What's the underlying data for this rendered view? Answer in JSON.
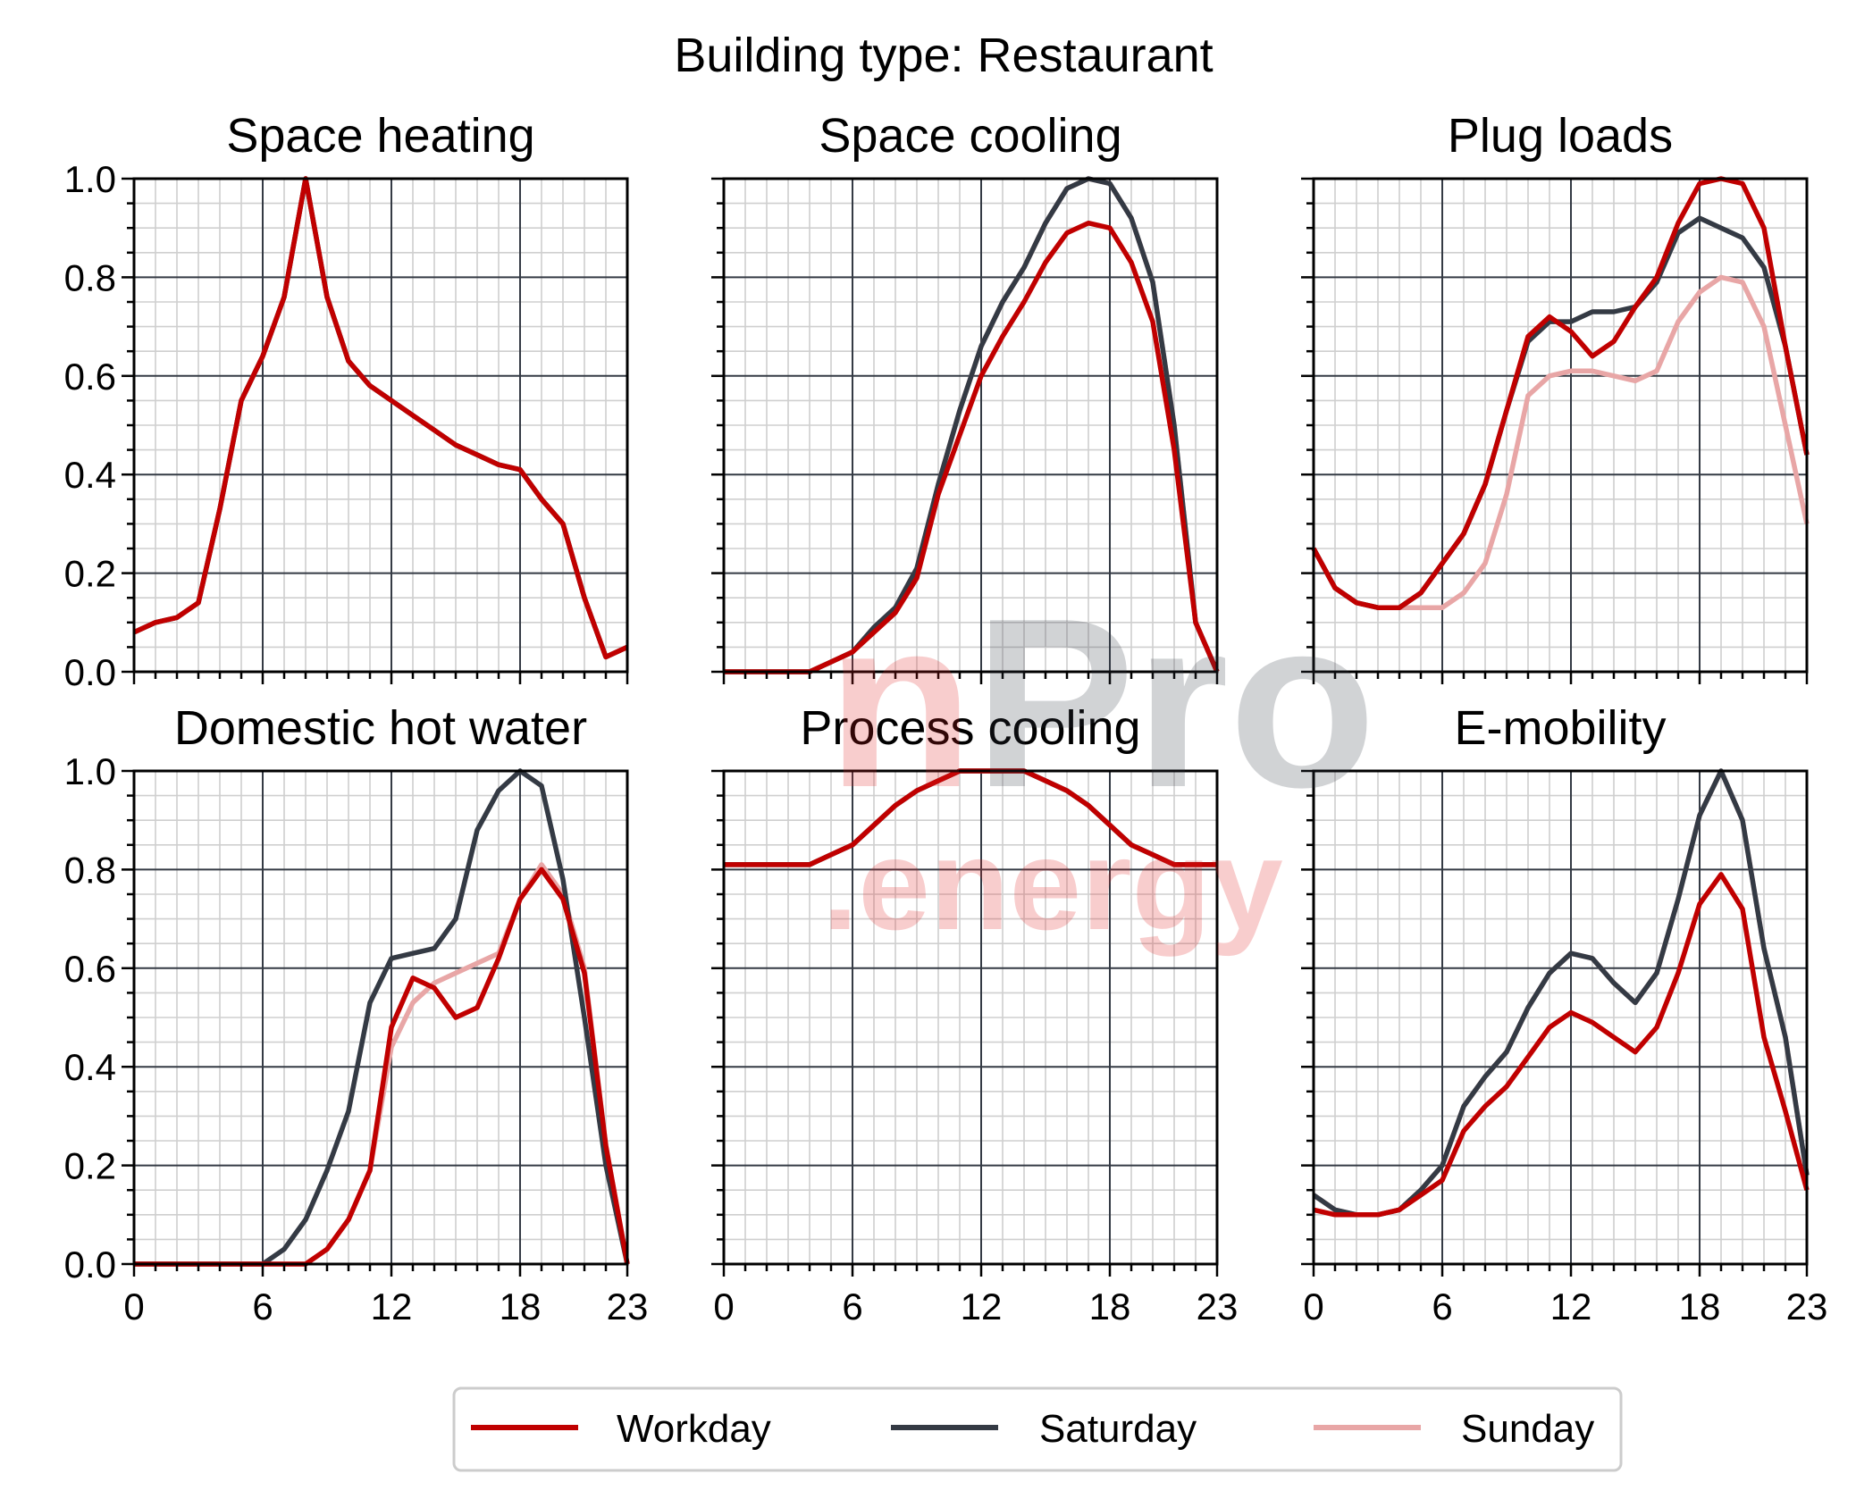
{
  "figure_title": "Building type: Restaurant",
  "watermark": {
    "line1_a": "n",
    "line1_b": "Pro",
    "line2": ".energy"
  },
  "colors": {
    "workday": "#c00000",
    "saturday": "#343a44",
    "sunday": "#e8a6a6",
    "grid_major": "#343a44",
    "grid_minor": "#cfcfcf"
  },
  "legend": [
    {
      "key": "workday",
      "label": "Workday"
    },
    {
      "key": "saturday",
      "label": "Saturday"
    },
    {
      "key": "sunday",
      "label": "Sunday"
    }
  ],
  "chart_data": [
    {
      "type": "line",
      "title": "Space heating",
      "x": [
        0,
        1,
        2,
        3,
        4,
        5,
        6,
        7,
        8,
        9,
        10,
        11,
        12,
        13,
        14,
        15,
        16,
        17,
        18,
        19,
        20,
        21,
        22,
        23
      ],
      "xticks": [
        0,
        6,
        12,
        18,
        23
      ],
      "xlim": [
        0,
        23
      ],
      "yticks": [
        "0.0",
        "0.2",
        "0.4",
        "0.6",
        "0.8",
        "1.0"
      ],
      "ylim": [
        0,
        1
      ],
      "show_yticklabels": true,
      "show_xticklabels": false,
      "grid": true,
      "series": [
        {
          "key": "sunday",
          "values": [
            0.08,
            0.1,
            0.11,
            0.14,
            0.33,
            0.55,
            0.64,
            0.76,
            1.0,
            0.76,
            0.63,
            0.58,
            0.55,
            0.52,
            0.49,
            0.46,
            0.44,
            0.42,
            0.41,
            0.35,
            0.3,
            0.15,
            0.03,
            0.05
          ]
        },
        {
          "key": "saturday",
          "values": [
            0.08,
            0.1,
            0.11,
            0.14,
            0.33,
            0.55,
            0.64,
            0.76,
            1.0,
            0.76,
            0.63,
            0.58,
            0.55,
            0.52,
            0.49,
            0.46,
            0.44,
            0.42,
            0.41,
            0.35,
            0.3,
            0.15,
            0.03,
            0.05
          ]
        },
        {
          "key": "workday",
          "values": [
            0.08,
            0.1,
            0.11,
            0.14,
            0.33,
            0.55,
            0.64,
            0.76,
            1.0,
            0.76,
            0.63,
            0.58,
            0.55,
            0.52,
            0.49,
            0.46,
            0.44,
            0.42,
            0.41,
            0.35,
            0.3,
            0.15,
            0.03,
            0.05
          ]
        }
      ]
    },
    {
      "type": "line",
      "title": "Space cooling",
      "x": [
        0,
        1,
        2,
        3,
        4,
        5,
        6,
        7,
        8,
        9,
        10,
        11,
        12,
        13,
        14,
        15,
        16,
        17,
        18,
        19,
        20,
        21,
        22,
        23
      ],
      "xticks": [
        0,
        6,
        12,
        18,
        23
      ],
      "xlim": [
        0,
        23
      ],
      "yticks": [
        "0.0",
        "0.2",
        "0.4",
        "0.6",
        "0.8",
        "1.0"
      ],
      "ylim": [
        0,
        1
      ],
      "show_yticklabels": false,
      "show_xticklabels": false,
      "grid": true,
      "series": [
        {
          "key": "sunday",
          "values": [
            0,
            0,
            0,
            0,
            0,
            0.02,
            0.04,
            0.09,
            0.13,
            0.21,
            0.38,
            0.53,
            0.66,
            0.75,
            0.82,
            0.91,
            0.98,
            1.0,
            0.99,
            0.92,
            0.79,
            0.5,
            0.1,
            0
          ]
        },
        {
          "key": "saturday",
          "values": [
            0,
            0,
            0,
            0,
            0,
            0.02,
            0.04,
            0.09,
            0.13,
            0.21,
            0.38,
            0.53,
            0.66,
            0.75,
            0.82,
            0.91,
            0.98,
            1.0,
            0.99,
            0.92,
            0.79,
            0.5,
            0.1,
            0
          ]
        },
        {
          "key": "workday",
          "values": [
            0,
            0,
            0,
            0,
            0,
            0.02,
            0.04,
            0.08,
            0.12,
            0.19,
            0.36,
            0.48,
            0.6,
            0.68,
            0.75,
            0.83,
            0.89,
            0.91,
            0.9,
            0.83,
            0.71,
            0.45,
            0.1,
            0
          ]
        }
      ]
    },
    {
      "type": "line",
      "title": "Plug loads",
      "x": [
        0,
        1,
        2,
        3,
        4,
        5,
        6,
        7,
        8,
        9,
        10,
        11,
        12,
        13,
        14,
        15,
        16,
        17,
        18,
        19,
        20,
        21,
        22,
        23
      ],
      "xticks": [
        0,
        6,
        12,
        18,
        23
      ],
      "xlim": [
        0,
        23
      ],
      "yticks": [
        "0.0",
        "0.2",
        "0.4",
        "0.6",
        "0.8",
        "1.0"
      ],
      "ylim": [
        0,
        1
      ],
      "show_yticklabels": false,
      "show_xticklabels": false,
      "grid": true,
      "series": [
        {
          "key": "sunday",
          "values": [
            0.25,
            0.17,
            0.14,
            0.13,
            0.13,
            0.13,
            0.13,
            0.16,
            0.22,
            0.36,
            0.56,
            0.6,
            0.61,
            0.61,
            0.6,
            0.59,
            0.61,
            0.71,
            0.77,
            0.8,
            0.79,
            0.7,
            0.5,
            0.3
          ]
        },
        {
          "key": "saturday",
          "values": [
            0.25,
            0.17,
            0.14,
            0.13,
            0.13,
            0.16,
            0.22,
            0.28,
            0.38,
            0.53,
            0.67,
            0.71,
            0.71,
            0.73,
            0.73,
            0.74,
            0.79,
            0.89,
            0.92,
            0.9,
            0.88,
            0.82,
            0.66,
            0.44
          ]
        },
        {
          "key": "workday",
          "values": [
            0.25,
            0.17,
            0.14,
            0.13,
            0.13,
            0.16,
            0.22,
            0.28,
            0.38,
            0.53,
            0.68,
            0.72,
            0.69,
            0.64,
            0.67,
            0.74,
            0.8,
            0.91,
            0.99,
            1.0,
            0.99,
            0.9,
            0.66,
            0.44
          ]
        }
      ]
    },
    {
      "type": "line",
      "title": "Domestic hot water",
      "x": [
        0,
        1,
        2,
        3,
        4,
        5,
        6,
        7,
        8,
        9,
        10,
        11,
        12,
        13,
        14,
        15,
        16,
        17,
        18,
        19,
        20,
        21,
        22,
        23
      ],
      "xticks": [
        0,
        6,
        12,
        18,
        23
      ],
      "xlim": [
        0,
        23
      ],
      "yticks": [
        "0.0",
        "0.2",
        "0.4",
        "0.6",
        "0.8",
        "1.0"
      ],
      "ylim": [
        0,
        1
      ],
      "show_yticklabels": true,
      "show_xticklabels": true,
      "grid": true,
      "series": [
        {
          "key": "sunday",
          "values": [
            0,
            0,
            0,
            0,
            0,
            0,
            0,
            0,
            0,
            0.03,
            0.09,
            0.19,
            0.44,
            0.53,
            0.57,
            0.59,
            0.61,
            0.63,
            0.74,
            0.81,
            0.75,
            0.6,
            0.24,
            0
          ]
        },
        {
          "key": "saturday",
          "values": [
            0,
            0,
            0,
            0,
            0,
            0,
            0,
            0.03,
            0.09,
            0.19,
            0.31,
            0.53,
            0.62,
            0.63,
            0.64,
            0.7,
            0.88,
            0.96,
            1.0,
            0.97,
            0.78,
            0.5,
            0.2,
            0
          ]
        },
        {
          "key": "workday",
          "values": [
            0,
            0,
            0,
            0,
            0,
            0,
            0,
            0,
            0,
            0.03,
            0.09,
            0.19,
            0.48,
            0.58,
            0.56,
            0.5,
            0.52,
            0.62,
            0.74,
            0.8,
            0.74,
            0.59,
            0.24,
            0
          ]
        }
      ]
    },
    {
      "type": "line",
      "title": "Process cooling",
      "x": [
        0,
        1,
        2,
        3,
        4,
        5,
        6,
        7,
        8,
        9,
        10,
        11,
        12,
        13,
        14,
        15,
        16,
        17,
        18,
        19,
        20,
        21,
        22,
        23
      ],
      "xticks": [
        0,
        6,
        12,
        18,
        23
      ],
      "xlim": [
        0,
        23
      ],
      "yticks": [
        "0.0",
        "0.2",
        "0.4",
        "0.6",
        "0.8",
        "1.0"
      ],
      "ylim": [
        0,
        1
      ],
      "show_yticklabels": false,
      "show_xticklabels": true,
      "grid": true,
      "series": [
        {
          "key": "sunday",
          "values": [
            0.81,
            0.81,
            0.81,
            0.81,
            0.81,
            0.83,
            0.85,
            0.89,
            0.93,
            0.96,
            0.98,
            1.0,
            1.0,
            1.0,
            1.0,
            0.98,
            0.96,
            0.93,
            0.89,
            0.85,
            0.83,
            0.81,
            0.81,
            0.81
          ]
        },
        {
          "key": "saturday",
          "values": [
            0.81,
            0.81,
            0.81,
            0.81,
            0.81,
            0.83,
            0.85,
            0.89,
            0.93,
            0.96,
            0.98,
            1.0,
            1.0,
            1.0,
            1.0,
            0.98,
            0.96,
            0.93,
            0.89,
            0.85,
            0.83,
            0.81,
            0.81,
            0.81
          ]
        },
        {
          "key": "workday",
          "values": [
            0.81,
            0.81,
            0.81,
            0.81,
            0.81,
            0.83,
            0.85,
            0.89,
            0.93,
            0.96,
            0.98,
            1.0,
            1.0,
            1.0,
            1.0,
            0.98,
            0.96,
            0.93,
            0.89,
            0.85,
            0.83,
            0.81,
            0.81,
            0.81
          ]
        }
      ]
    },
    {
      "type": "line",
      "title": "E-mobility",
      "x": [
        0,
        1,
        2,
        3,
        4,
        5,
        6,
        7,
        8,
        9,
        10,
        11,
        12,
        13,
        14,
        15,
        16,
        17,
        18,
        19,
        20,
        21,
        22,
        23
      ],
      "xticks": [
        0,
        6,
        12,
        18,
        23
      ],
      "xlim": [
        0,
        23
      ],
      "yticks": [
        "0.0",
        "0.2",
        "0.4",
        "0.6",
        "0.8",
        "1.0"
      ],
      "ylim": [
        0,
        1
      ],
      "show_yticklabels": false,
      "show_xticklabels": true,
      "grid": true,
      "series": [
        {
          "key": "sunday",
          "values": [
            0.14,
            0.11,
            0.1,
            0.1,
            0.11,
            0.15,
            0.2,
            0.32,
            0.38,
            0.43,
            0.52,
            0.59,
            0.63,
            0.62,
            0.57,
            0.53,
            0.59,
            0.74,
            0.91,
            1.0,
            0.9,
            0.64,
            0.46,
            0.18
          ]
        },
        {
          "key": "saturday",
          "values": [
            0.14,
            0.11,
            0.1,
            0.1,
            0.11,
            0.15,
            0.2,
            0.32,
            0.38,
            0.43,
            0.52,
            0.59,
            0.63,
            0.62,
            0.57,
            0.53,
            0.59,
            0.74,
            0.91,
            1.0,
            0.9,
            0.64,
            0.46,
            0.18
          ]
        },
        {
          "key": "workday",
          "values": [
            0.11,
            0.1,
            0.1,
            0.1,
            0.11,
            0.14,
            0.17,
            0.27,
            0.32,
            0.36,
            0.42,
            0.48,
            0.51,
            0.49,
            0.46,
            0.43,
            0.48,
            0.59,
            0.73,
            0.79,
            0.72,
            0.46,
            0.31,
            0.15
          ]
        }
      ]
    }
  ]
}
